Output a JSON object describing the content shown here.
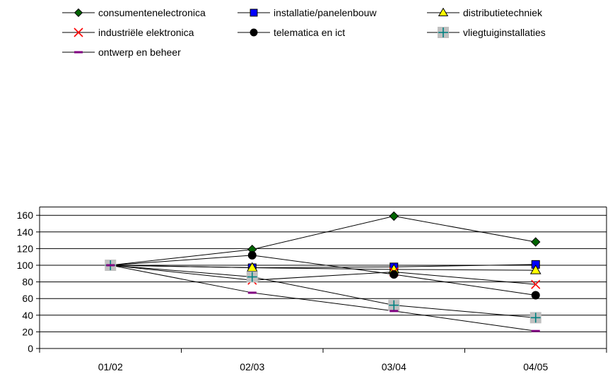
{
  "chart_data": {
    "type": "line",
    "title": "",
    "xlabel": "",
    "ylabel": "",
    "categories": [
      "01/02",
      "02/03",
      "03/04",
      "04/05"
    ],
    "ylim": [
      0,
      170
    ],
    "yticks": [
      0,
      20,
      40,
      60,
      80,
      100,
      120,
      140,
      160
    ],
    "grid": "horizontal",
    "legend_position": "top",
    "series": [
      {
        "name": "consumentenelectronica",
        "values": [
          100,
          119,
          159,
          128
        ],
        "color": "#006400",
        "marker": "diamond"
      },
      {
        "name": "installatie/panelenbouw",
        "values": [
          100,
          97,
          98,
          101
        ],
        "color": "#0000ff",
        "marker": "square"
      },
      {
        "name": "distributietechniek",
        "values": [
          100,
          97,
          95,
          94
        ],
        "color": "#ffff00",
        "marker": "triangle"
      },
      {
        "name": "industriële elektronica",
        "values": [
          100,
          82,
          92,
          77
        ],
        "color": "#ff0000",
        "marker": "x"
      },
      {
        "name": "telematica en ict",
        "values": [
          100,
          112,
          89,
          64
        ],
        "color": "#000000",
        "marker": "circle"
      },
      {
        "name": "vliegtuiginstallaties",
        "values": [
          100,
          86,
          52,
          37
        ],
        "color": "#008080",
        "marker": "plus-box"
      },
      {
        "name": "ontwerp en beheer",
        "values": [
          100,
          67,
          45,
          21
        ],
        "color": "#800080",
        "marker": "dash"
      }
    ]
  }
}
